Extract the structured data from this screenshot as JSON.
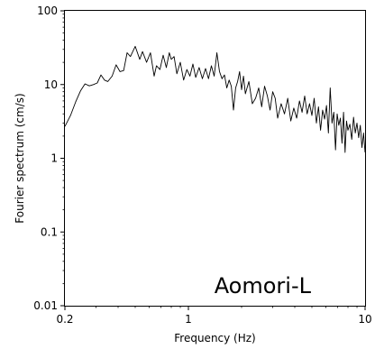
{
  "chart_data": {
    "type": "line",
    "xlabel": "Frequency (Hz)",
    "ylabel": "Fourier spectrum (cm/s)",
    "annotation": "Aomori-L",
    "x_scale": "log",
    "y_scale": "log",
    "xlim": [
      0.2,
      10
    ],
    "ylim": [
      0.01,
      100
    ],
    "x_ticks": [
      {
        "value": 0.2,
        "label": "0.2"
      },
      {
        "value": 1,
        "label": "1"
      },
      {
        "value": 10,
        "label": "10"
      }
    ],
    "y_ticks": [
      {
        "value": 0.01,
        "label": "0.01"
      },
      {
        "value": 0.1,
        "label": "0.1"
      },
      {
        "value": 1,
        "label": "1"
      },
      {
        "value": 10,
        "label": "10"
      },
      {
        "value": 100,
        "label": "100"
      }
    ],
    "grid": false,
    "line_color": "#000000",
    "series": [
      {
        "x": [
          0.2,
          0.215,
          0.23,
          0.245,
          0.26,
          0.275,
          0.29,
          0.305,
          0.32,
          0.335,
          0.35,
          0.37,
          0.39,
          0.41,
          0.43,
          0.45,
          0.47,
          0.5,
          0.53,
          0.55,
          0.58,
          0.61,
          0.64,
          0.66,
          0.69,
          0.72,
          0.75,
          0.78,
          0.8,
          0.83,
          0.86,
          0.9,
          0.94,
          0.98,
          1.02,
          1.06,
          1.1,
          1.15,
          1.2,
          1.25,
          1.3,
          1.35,
          1.4,
          1.45,
          1.5,
          1.55,
          1.6,
          1.65,
          1.7,
          1.75,
          1.8,
          1.85,
          1.9,
          1.95,
          2.0,
          2.05,
          2.1,
          2.2,
          2.3,
          2.4,
          2.5,
          2.6,
          2.7,
          2.8,
          2.9,
          3.0,
          3.1,
          3.2,
          3.35,
          3.5,
          3.65,
          3.8,
          3.95,
          4.1,
          4.25,
          4.4,
          4.55,
          4.7,
          4.85,
          5.0,
          5.15,
          5.3,
          5.45,
          5.6,
          5.75,
          5.9,
          6.05,
          6.2,
          6.35,
          6.5,
          6.65,
          6.8,
          6.95,
          7.1,
          7.25,
          7.4,
          7.55,
          7.7,
          7.85,
          8.0,
          8.2,
          8.4,
          8.6,
          8.8,
          9.0,
          9.2,
          9.4,
          9.6,
          9.8,
          10.0
        ],
        "y": [
          2.7,
          3.8,
          5.8,
          8.2,
          10.2,
          9.6,
          10.0,
          10.5,
          13.5,
          11.5,
          11.0,
          13.0,
          18.5,
          15.0,
          15.5,
          27.0,
          24.0,
          33.0,
          22.0,
          28.0,
          20.0,
          27.0,
          13.0,
          18.0,
          16.0,
          25.0,
          17.0,
          27.0,
          22.0,
          24.0,
          14.0,
          20.0,
          11.5,
          16.0,
          13.0,
          19.0,
          12.5,
          17.0,
          12.0,
          16.5,
          12.0,
          18.0,
          13.0,
          27.0,
          15.0,
          12.0,
          13.5,
          9.0,
          11.5,
          9.5,
          4.5,
          9.0,
          11.0,
          15.0,
          8.5,
          13.0,
          7.5,
          11.0,
          5.5,
          6.5,
          9.0,
          5.0,
          9.5,
          7.0,
          4.5,
          8.0,
          6.5,
          3.5,
          5.5,
          4.0,
          6.5,
          3.2,
          4.8,
          3.5,
          6.0,
          4.2,
          7.0,
          4.0,
          5.5,
          3.8,
          6.5,
          3.0,
          5.0,
          2.4,
          4.5,
          3.4,
          5.2,
          2.2,
          9.0,
          3.0,
          4.2,
          1.3,
          4.0,
          2.8,
          3.5,
          1.6,
          4.2,
          1.2,
          3.2,
          2.4,
          2.9,
          1.8,
          3.6,
          2.2,
          3.0,
          1.9,
          2.8,
          1.4,
          2.2,
          1.2
        ]
      }
    ]
  }
}
